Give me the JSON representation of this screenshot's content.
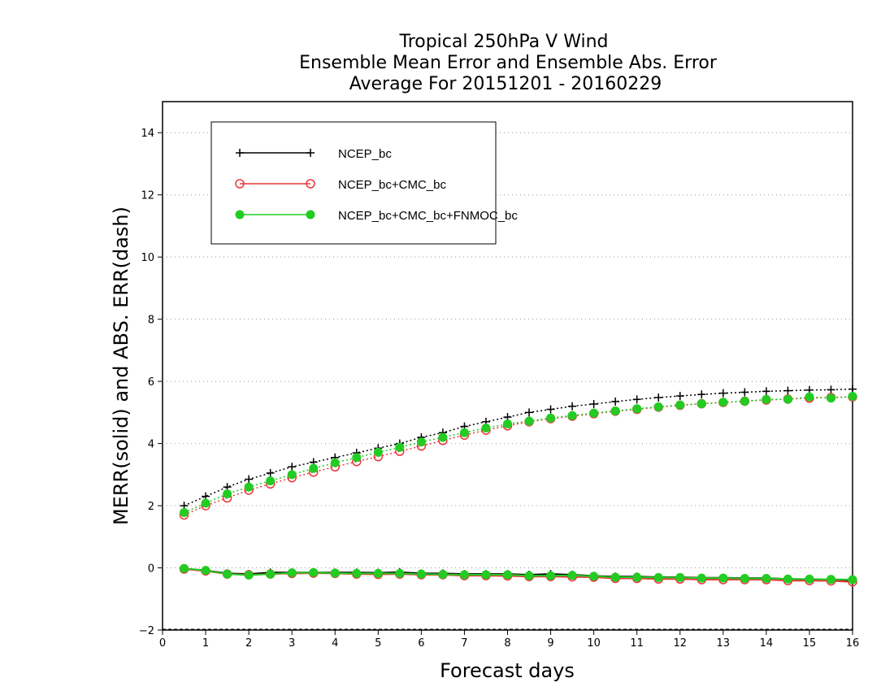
{
  "chart_data": {
    "type": "line",
    "title_lines": [
      "Tropical 250hPa V Wind",
      "Ensemble Mean Error and Ensemble Abs. Error",
      "Average For 20151201 - 20160229"
    ],
    "xlabel": "Forecast days",
    "ylabel": "MERR(solid) and ABS. ERR(dash)",
    "xlim": [
      0,
      16
    ],
    "ylim": [
      -2,
      15
    ],
    "xticks": [
      0,
      1,
      2,
      3,
      4,
      5,
      6,
      7,
      8,
      9,
      10,
      11,
      12,
      13,
      14,
      15,
      16
    ],
    "yticks": [
      -2,
      0,
      2,
      4,
      6,
      8,
      10,
      12,
      14
    ],
    "grid": "horizontal dotted",
    "legend_position": "top-left",
    "x": [
      0.5,
      1,
      1.5,
      2,
      2.5,
      3,
      3.5,
      4,
      4.5,
      5,
      5.5,
      6,
      6.5,
      7,
      7.5,
      8,
      8.5,
      9,
      9.5,
      10,
      10.5,
      11,
      11.5,
      12,
      12.5,
      13,
      13.5,
      14,
      14.5,
      15,
      15.5,
      16
    ],
    "series": [
      {
        "name": "NCEP_bc",
        "color": "#000000",
        "marker": "plus",
        "abs_err": [
          2.0,
          2.3,
          2.6,
          2.85,
          3.05,
          3.25,
          3.4,
          3.55,
          3.7,
          3.85,
          4.0,
          4.2,
          4.35,
          4.55,
          4.7,
          4.85,
          5.0,
          5.1,
          5.2,
          5.27,
          5.35,
          5.42,
          5.48,
          5.53,
          5.58,
          5.62,
          5.65,
          5.68,
          5.7,
          5.72,
          5.73,
          5.75
        ],
        "mean_err": [
          -0.03,
          -0.08,
          -0.18,
          -0.2,
          -0.15,
          -0.15,
          -0.15,
          -0.15,
          -0.15,
          -0.16,
          -0.14,
          -0.18,
          -0.18,
          -0.2,
          -0.2,
          -0.2,
          -0.22,
          -0.2,
          -0.22,
          -0.26,
          -0.28,
          -0.28,
          -0.3,
          -0.3,
          -0.32,
          -0.32,
          -0.33,
          -0.33,
          -0.36,
          -0.37,
          -0.38,
          -0.4
        ]
      },
      {
        "name": "NCEP_bc+CMC_bc",
        "color": "#e8393c",
        "marker": "open-circle",
        "abs_err": [
          1.7,
          2.0,
          2.25,
          2.5,
          2.7,
          2.9,
          3.08,
          3.25,
          3.42,
          3.58,
          3.75,
          3.92,
          4.1,
          4.27,
          4.43,
          4.57,
          4.7,
          4.8,
          4.88,
          4.96,
          5.04,
          5.1,
          5.17,
          5.23,
          5.28,
          5.32,
          5.36,
          5.4,
          5.43,
          5.46,
          5.48,
          5.5
        ],
        "mean_err": [
          -0.04,
          -0.1,
          -0.2,
          -0.22,
          -0.2,
          -0.18,
          -0.17,
          -0.18,
          -0.2,
          -0.21,
          -0.2,
          -0.22,
          -0.22,
          -0.25,
          -0.25,
          -0.26,
          -0.28,
          -0.28,
          -0.29,
          -0.3,
          -0.34,
          -0.34,
          -0.36,
          -0.36,
          -0.38,
          -0.38,
          -0.38,
          -0.38,
          -0.41,
          -0.41,
          -0.42,
          -0.45
        ]
      },
      {
        "name": "NCEP_bc+CMC_bc+FNMOC_bc",
        "color": "#22cc22",
        "marker": "filled-circle",
        "abs_err": [
          1.78,
          2.08,
          2.38,
          2.6,
          2.8,
          3.0,
          3.2,
          3.38,
          3.55,
          3.72,
          3.88,
          4.05,
          4.2,
          4.35,
          4.5,
          4.63,
          4.72,
          4.82,
          4.9,
          4.98,
          5.05,
          5.12,
          5.18,
          5.24,
          5.28,
          5.33,
          5.36,
          5.42,
          5.42,
          5.5,
          5.46,
          5.52
        ],
        "mean_err": [
          -0.02,
          -0.08,
          -0.2,
          -0.23,
          -0.2,
          -0.16,
          -0.15,
          -0.17,
          -0.18,
          -0.18,
          -0.18,
          -0.2,
          -0.21,
          -0.22,
          -0.22,
          -0.22,
          -0.25,
          -0.25,
          -0.24,
          -0.27,
          -0.3,
          -0.3,
          -0.31,
          -0.31,
          -0.33,
          -0.33,
          -0.34,
          -0.34,
          -0.36,
          -0.36,
          -0.37,
          -0.38
        ]
      }
    ]
  }
}
